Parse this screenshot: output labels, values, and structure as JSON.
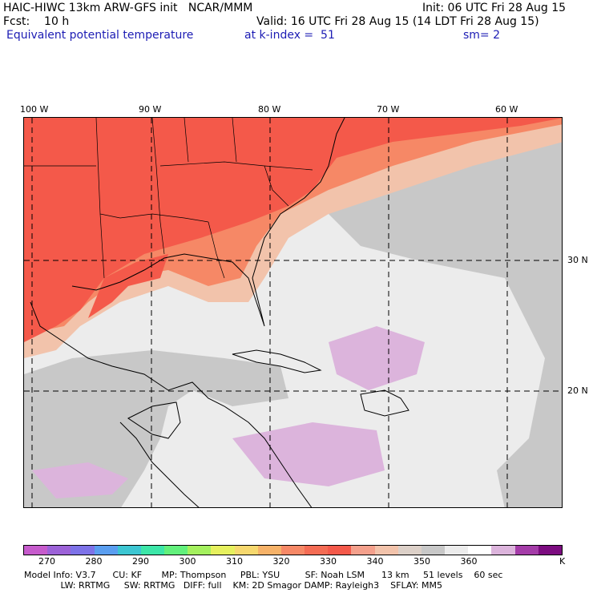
{
  "header": {
    "line1_left": "HAIC-HIWC 13km ARW-GFS init   NCAR/MMM",
    "line1_right": "Init: 06 UTC Fri 28 Aug 15",
    "line2_left": "Fcst:    10 h",
    "line2_right": "Valid: 16 UTC Fri 28 Aug 15 (14 LDT Fri 28 Aug 15)",
    "line3_field": "Equivalent potential temperature",
    "line3_level": "at k-index =  51",
    "line3_smooth": "sm= 2"
  },
  "map": {
    "lon_labels": [
      "100 W",
      "90 W",
      "80 W",
      "70 W",
      "60 W"
    ],
    "lat_labels": [
      "30 N",
      "20 N"
    ],
    "colors": {
      "hot": "#f4594a",
      "warm": "#f68866",
      "tan": "#f2c3ab",
      "gray": "#c8c8c8",
      "light": "#ececec",
      "lavender": "#dcb4dc",
      "border": "#000000",
      "grid": "#000000"
    }
  },
  "colorbar": {
    "colors": [
      "#c65bcc",
      "#9c62d8",
      "#7d72e8",
      "#5a9ef0",
      "#3cc6d2",
      "#3ce6a8",
      "#62f07c",
      "#a4f05e",
      "#e6f05e",
      "#f6d86e",
      "#f6b268",
      "#f68866",
      "#f46c54",
      "#f4594a",
      "#f4a08c",
      "#f2c3ab",
      "#dcd0c8",
      "#c8c8c8",
      "#ececec",
      "#ffffff",
      "#dcb4dc",
      "#a43ca8",
      "#7c0c80"
    ],
    "labels": [
      "270",
      "280",
      "290",
      "300",
      "310",
      "320",
      "330",
      "340",
      "350",
      "360"
    ],
    "unit": "K"
  },
  "footer": {
    "line1": "Model Info: V3.7      CU: KF       MP: Thompson     PBL: YSU         SF: Noah LSM      13 km     51 levels    60 sec",
    "line2": "             LW: RRTMG     SW: RRTMG   DIFF: full    KM: 2D Smagor DAMP: Rayleigh3    SFLAY: MM5"
  }
}
